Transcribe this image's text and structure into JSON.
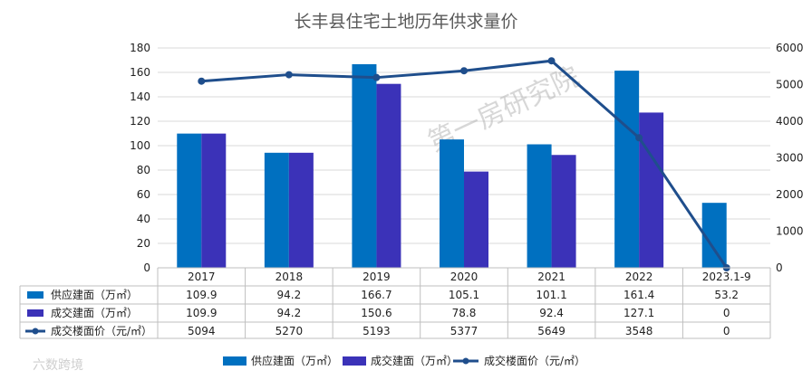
{
  "chart_data": {
    "type": "bar",
    "title": "长丰县住宅土地历年供求量价",
    "categories": [
      "2017",
      "2018",
      "2019",
      "2020",
      "2021",
      "2022",
      "2023.1-9"
    ],
    "series": [
      {
        "name": "供应建面（万㎡）",
        "type": "bar",
        "axis": "left",
        "color": "#0070c0",
        "values": [
          109.9,
          94.2,
          166.7,
          105.1,
          101.1,
          161.4,
          53.2
        ]
      },
      {
        "name": "成交建面（万㎡）",
        "type": "bar",
        "axis": "left",
        "color": "#3b32b8",
        "values": [
          109.9,
          94.2,
          150.6,
          78.8,
          92.4,
          127.1,
          0
        ]
      },
      {
        "name": "成交楼面价（元/㎡）",
        "type": "line",
        "axis": "right",
        "color": "#1f4e8c",
        "values": [
          5094,
          5270,
          5193,
          5377,
          5649,
          3548,
          0
        ]
      }
    ],
    "y_left": {
      "min": 0,
      "max": 180,
      "step": 20
    },
    "y_right": {
      "min": 0,
      "max": 6000,
      "step": 1000
    },
    "grid": true,
    "legend": "bottom",
    "data_table": true
  },
  "watermark": "第一房研究院",
  "corner_logo": "六数跨境"
}
